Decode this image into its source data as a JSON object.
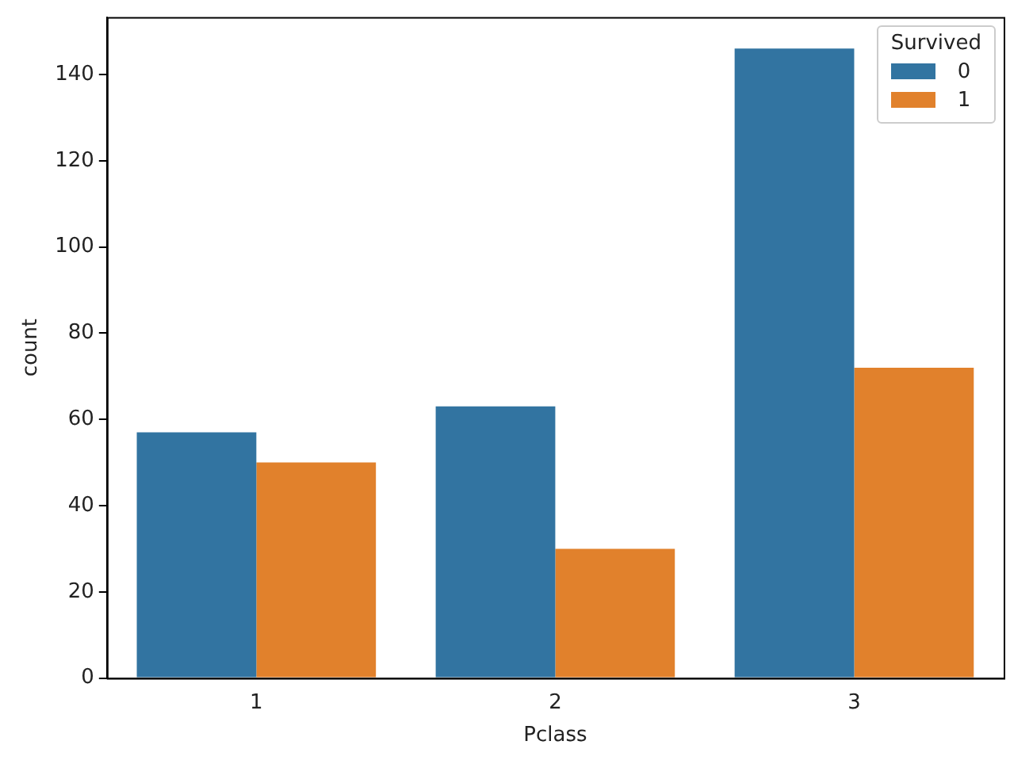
{
  "chart_data": {
    "type": "bar",
    "xlabel": "Pclass",
    "ylabel": "count",
    "legend_title": "Survived",
    "categories": [
      "1",
      "2",
      "3"
    ],
    "series": [
      {
        "name": "0",
        "color": "#3274a1",
        "values": [
          57,
          63,
          146
        ]
      },
      {
        "name": "1",
        "color": "#e1812c",
        "values": [
          50,
          30,
          72
        ]
      }
    ],
    "ylim": [
      0,
      153.3
    ],
    "yticks": [
      0,
      20,
      40,
      60,
      80,
      100,
      120,
      140
    ],
    "grid": false,
    "legend": "top right"
  }
}
